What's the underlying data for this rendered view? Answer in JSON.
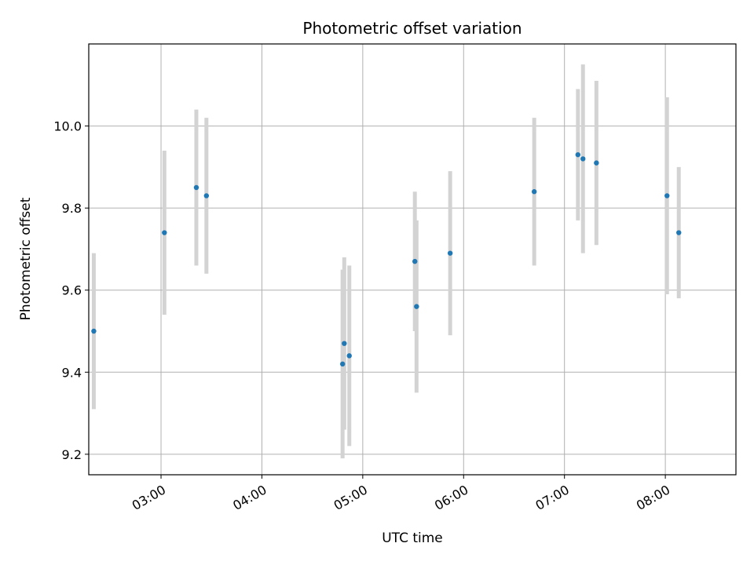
{
  "chart_data": {
    "type": "scatter",
    "title": "Photometric offset variation",
    "xlabel": "UTC time",
    "ylabel": "Photometric offset",
    "xlim": [
      "02:17",
      "08:42"
    ],
    "ylim": [
      9.15,
      10.2
    ],
    "xticks": [
      "03:00",
      "04:00",
      "05:00",
      "06:00",
      "07:00",
      "08:00"
    ],
    "yticks": [
      9.2,
      9.4,
      9.6,
      9.8,
      10.0
    ],
    "ytick_labels": [
      "9.2",
      "9.4",
      "9.6",
      "9.8",
      "10.0"
    ],
    "grid": true,
    "colors": {
      "marker": "#1f77b4",
      "errorbar": "#d3d3d3",
      "grid": "#b0b0b0"
    },
    "series": [
      {
        "points": [
          {
            "x": "02:20",
            "y": 9.5,
            "yerr": 0.19
          },
          {
            "x": "03:02",
            "y": 9.74,
            "yerr": 0.2
          },
          {
            "x": "03:21",
            "y": 9.85,
            "yerr": 0.19
          },
          {
            "x": "03:27",
            "y": 9.83,
            "yerr": 0.19
          },
          {
            "x": "04:48",
            "y": 9.42,
            "yerr": 0.23
          },
          {
            "x": "04:49",
            "y": 9.47,
            "yerr": 0.21
          },
          {
            "x": "04:52",
            "y": 9.44,
            "yerr": 0.22
          },
          {
            "x": "05:31",
            "y": 9.67,
            "yerr": 0.17
          },
          {
            "x": "05:32",
            "y": 9.56,
            "yerr": 0.21
          },
          {
            "x": "05:52",
            "y": 9.69,
            "yerr": 0.2
          },
          {
            "x": "06:42",
            "y": 9.84,
            "yerr": 0.18
          },
          {
            "x": "07:08",
            "y": 9.93,
            "yerr": 0.16
          },
          {
            "x": "07:11",
            "y": 9.92,
            "yerr": 0.23
          },
          {
            "x": "07:19",
            "y": 9.91,
            "yerr": 0.2
          },
          {
            "x": "08:01",
            "y": 9.83,
            "yerr": 0.24
          },
          {
            "x": "08:08",
            "y": 9.74,
            "yerr": 0.16
          }
        ]
      }
    ]
  }
}
